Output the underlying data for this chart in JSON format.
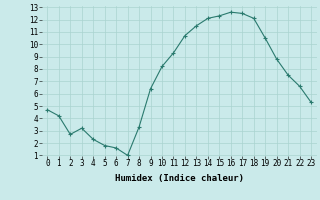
{
  "x": [
    0,
    1,
    2,
    3,
    4,
    5,
    6,
    7,
    8,
    9,
    10,
    11,
    12,
    13,
    14,
    15,
    16,
    17,
    18,
    19,
    20,
    21,
    22,
    23
  ],
  "y": [
    4.7,
    4.2,
    2.7,
    3.2,
    2.3,
    1.8,
    1.6,
    1.0,
    3.3,
    6.4,
    8.2,
    9.3,
    10.7,
    11.5,
    12.1,
    12.3,
    12.6,
    12.5,
    12.1,
    10.5,
    8.8,
    7.5,
    6.6,
    5.3
  ],
  "xlabel": "Humidex (Indice chaleur)",
  "ylim": [
    1,
    13
  ],
  "xlim": [
    -0.5,
    23.5
  ],
  "yticks": [
    1,
    2,
    3,
    4,
    5,
    6,
    7,
    8,
    9,
    10,
    11,
    12,
    13
  ],
  "xticks": [
    0,
    1,
    2,
    3,
    4,
    5,
    6,
    7,
    8,
    9,
    10,
    11,
    12,
    13,
    14,
    15,
    16,
    17,
    18,
    19,
    20,
    21,
    22,
    23
  ],
  "line_color": "#2a7a6e",
  "marker": "+",
  "bg_color": "#caeaea",
  "grid_color": "#aad4d0",
  "tick_label_fontsize": 5.5,
  "xlabel_fontsize": 6.5,
  "figwidth": 3.2,
  "figheight": 2.0,
  "dpi": 100
}
